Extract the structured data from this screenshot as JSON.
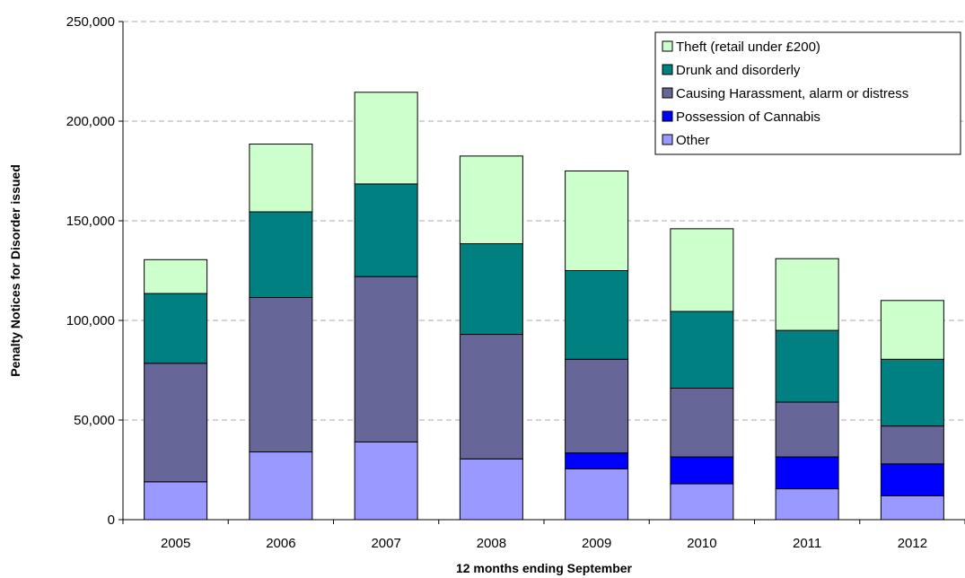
{
  "colors": {
    "Theft (retail under £200)": "#ccffcc",
    "Drunk and disorderly": "#008080",
    "Causing Harassment, alarm or distress": "#666699",
    "Possession of Cannabis": "#0000ff",
    "Other": "#9999ff",
    "gridline": "#aaaaaa",
    "axis": "#000000"
  },
  "chart_data": {
    "type": "bar",
    "stacked": true,
    "title": "",
    "xlabel": "12 months ending September",
    "ylabel": "Penalty Notices for Disorder issued",
    "categories": [
      "2005",
      "2006",
      "2007",
      "2008",
      "2009",
      "2010",
      "2011",
      "2012"
    ],
    "ylim": [
      0,
      250000
    ],
    "yticks": [
      0,
      50000,
      100000,
      150000,
      200000,
      250000
    ],
    "ytick_labels": [
      "0",
      "50,000",
      "100,000",
      "150,000",
      "200,000",
      "250,000"
    ],
    "grid": "horizontal dashed",
    "legend_position": "top-right",
    "series": [
      {
        "name": "Other",
        "values": [
          19000,
          34000,
          39000,
          30500,
          25500,
          18000,
          15500,
          12000
        ]
      },
      {
        "name": "Possession of Cannabis",
        "values": [
          0,
          0,
          0,
          0,
          8000,
          13500,
          16000,
          16000
        ]
      },
      {
        "name": "Causing Harassment, alarm or distress",
        "values": [
          59500,
          77500,
          83000,
          62500,
          47000,
          34500,
          27500,
          19000
        ]
      },
      {
        "name": "Drunk and disorderly",
        "values": [
          35000,
          43000,
          46500,
          45500,
          44500,
          38500,
          36000,
          33500
        ]
      },
      {
        "name": "Theft (retail under £200)",
        "values": [
          17000,
          34000,
          46000,
          44000,
          50000,
          41500,
          36000,
          29500
        ]
      }
    ],
    "legend_order": [
      "Theft (retail under £200)",
      "Drunk and disorderly",
      "Causing Harassment, alarm or distress",
      "Possession of Cannabis",
      "Other"
    ]
  }
}
